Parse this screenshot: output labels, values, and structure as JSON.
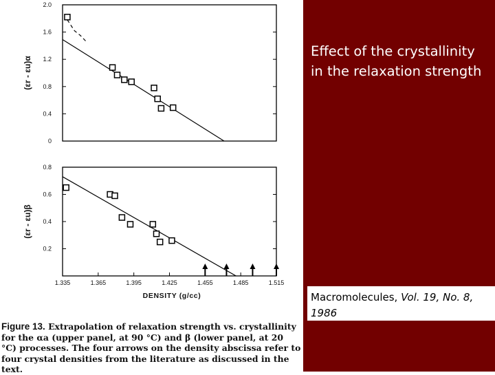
{
  "slide": {
    "title": "Effect of the crystallinity in the relaxation strength",
    "citation_journal": "Macromolecules,",
    "citation_details": "Vol. 19, No. 8, 1986",
    "panel_color": "#720000"
  },
  "figure": {
    "caption_label": "Figure 13.",
    "caption_text": "Extrapolation of relaxation strength vs. crystallinity for the αa (upper panel, at 90 °C) and β (lower panel, at 20 °C) processes. The four arrows on the density abscissa refer to four crystal densities from the literature as discussed in the text."
  },
  "chart_data": [
    {
      "type": "scatter",
      "panel": "upper",
      "ylabel": "(εr - εu)α",
      "ylim": [
        0,
        2.0
      ],
      "y_ticks": [
        "2.0",
        "1.6",
        "1.2",
        "0.8",
        "0.4",
        "0"
      ],
      "xlim": [
        1.335,
        1.515
      ],
      "points": [
        {
          "x": 1.339,
          "y": 1.82
        },
        {
          "x": 1.377,
          "y": 1.08
        },
        {
          "x": 1.381,
          "y": 0.97
        },
        {
          "x": 1.387,
          "y": 0.9
        },
        {
          "x": 1.393,
          "y": 0.87
        },
        {
          "x": 1.412,
          "y": 0.78
        },
        {
          "x": 1.415,
          "y": 0.62
        },
        {
          "x": 1.418,
          "y": 0.48
        },
        {
          "x": 1.428,
          "y": 0.49
        }
      ],
      "fit_line": [
        {
          "x": 1.335,
          "y": 1.49
        },
        {
          "x": 1.471,
          "y": 0
        }
      ],
      "dashed_curve": [
        {
          "x": 1.339,
          "y": 1.78
        },
        {
          "x": 1.345,
          "y": 1.62
        },
        {
          "x": 1.35,
          "y": 1.55
        },
        {
          "x": 1.356,
          "y": 1.44
        }
      ]
    },
    {
      "type": "scatter",
      "panel": "lower",
      "ylabel": "(εr - εu)β",
      "ylim": [
        0,
        0.8
      ],
      "y_ticks": [
        "0.8",
        "0.6",
        "0.4",
        "0.2"
      ],
      "xlabel": "DENSITY (g/cc)",
      "xlim": [
        1.335,
        1.515
      ],
      "x_ticks": [
        "1.335",
        "1.365",
        "1.395",
        "1.425",
        "1.455",
        "1.485",
        "1.515"
      ],
      "points": [
        {
          "x": 1.338,
          "y": 0.65
        },
        {
          "x": 1.375,
          "y": 0.6
        },
        {
          "x": 1.379,
          "y": 0.59
        },
        {
          "x": 1.385,
          "y": 0.43
        },
        {
          "x": 1.392,
          "y": 0.38
        },
        {
          "x": 1.411,
          "y": 0.38
        },
        {
          "x": 1.414,
          "y": 0.31
        },
        {
          "x": 1.417,
          "y": 0.25
        },
        {
          "x": 1.427,
          "y": 0.26
        }
      ],
      "fit_line": [
        {
          "x": 1.335,
          "y": 0.73
        },
        {
          "x": 1.481,
          "y": 0
        }
      ],
      "arrows_x": [
        1.455,
        1.473,
        1.495,
        1.515
      ]
    }
  ]
}
